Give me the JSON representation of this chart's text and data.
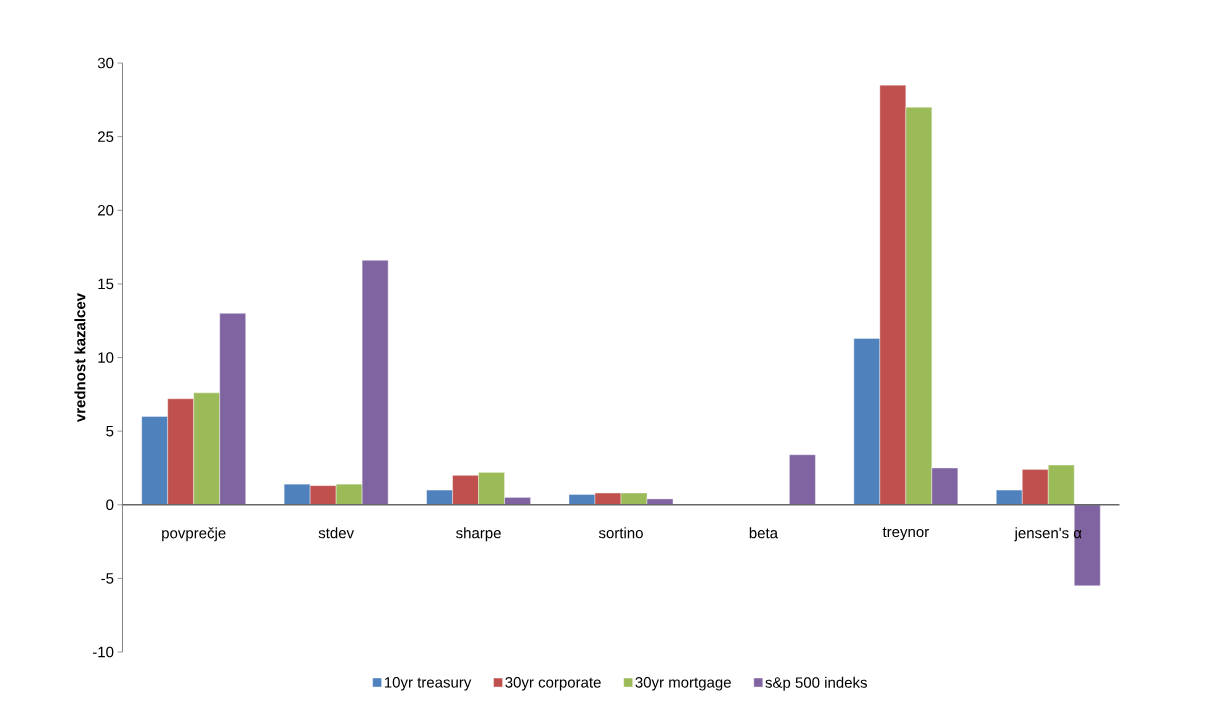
{
  "chart_data": {
    "type": "bar",
    "ylabel": "vrednost kazalcev",
    "categories": [
      "povprečje",
      "stdev",
      "sharpe",
      "sortino",
      "beta",
      "treynor",
      "jensen's α"
    ],
    "series": [
      {
        "name": "10yr treasury",
        "color": "#4f81bd",
        "values": [
          6.0,
          1.4,
          1.0,
          0.7,
          null,
          11.3,
          1.0
        ]
      },
      {
        "name": "30yr corporate",
        "color": "#c0504d",
        "values": [
          7.2,
          1.3,
          2.0,
          0.8,
          null,
          28.5,
          2.4
        ]
      },
      {
        "name": "30yr mortgage",
        "color": "#9bbb59",
        "values": [
          7.6,
          1.4,
          2.2,
          0.8,
          null,
          27.0,
          2.7
        ]
      },
      {
        "name": "s&p 500 indeks",
        "color": "#8064a2",
        "values": [
          13.0,
          16.6,
          0.5,
          0.4,
          3.4,
          2.5,
          -5.5
        ]
      }
    ],
    "ylim": [
      -10,
      30
    ],
    "yticks": [
      -10,
      -5,
      0,
      5,
      10,
      15,
      20,
      25,
      30
    ],
    "grid": false,
    "legend": "bottom"
  }
}
